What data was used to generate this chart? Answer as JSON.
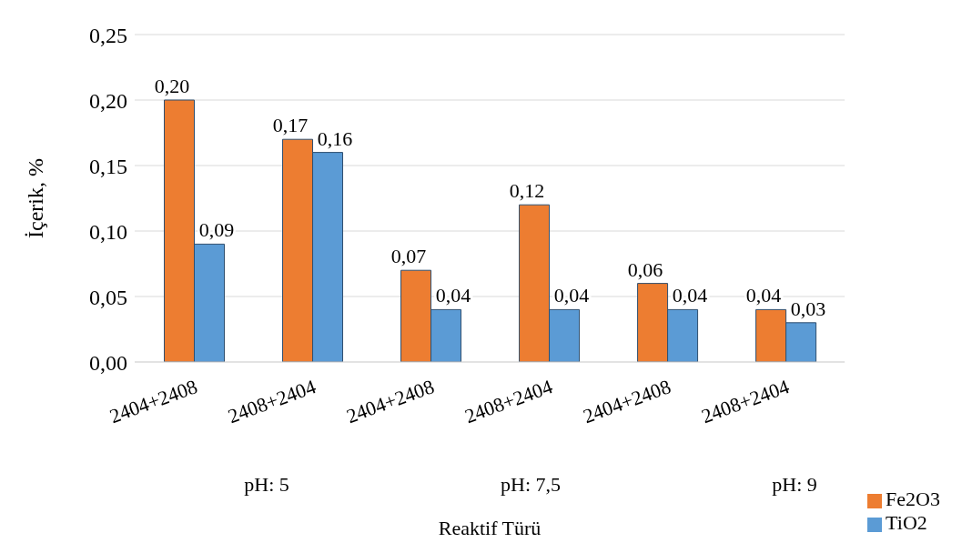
{
  "chart_data": {
    "type": "bar",
    "xlabel": "Reaktif Türü",
    "ylabel": "İçerik, %",
    "categories": [
      "2404+2408",
      "2408+2404",
      "2404+2408",
      "2408+2404",
      "2404+2408",
      "2408+2404"
    ],
    "series": [
      {
        "name": "Fe2O3",
        "color": "#ed7d31",
        "values": [
          0.2,
          0.17,
          0.07,
          0.12,
          0.06,
          0.04
        ],
        "value_labels": [
          "0,20",
          "0,17",
          "0,07",
          "0,12",
          "0,06",
          "0,04"
        ]
      },
      {
        "name": "TiO2",
        "color": "#5b9bd5",
        "values": [
          0.09,
          0.16,
          0.04,
          0.04,
          0.04,
          0.03
        ],
        "value_labels": [
          "0,09",
          "0,16",
          "0,04",
          "0,04",
          "0,04",
          "0,03"
        ]
      }
    ],
    "ylim": [
      0,
      0.25
    ],
    "yticks": [
      {
        "value": 0,
        "label": "0,00"
      },
      {
        "value": 0.05,
        "label": "0,05"
      },
      {
        "value": 0.1,
        "label": "0,10"
      },
      {
        "value": 0.15,
        "label": "0,15"
      },
      {
        "value": 0.2,
        "label": "0,20"
      },
      {
        "value": 0.25,
        "label": "0,25"
      }
    ],
    "grid": "y",
    "legend": "bottom right",
    "annotations": [
      "pH: 5",
      "pH: 7,5",
      "pH: 9"
    ]
  }
}
